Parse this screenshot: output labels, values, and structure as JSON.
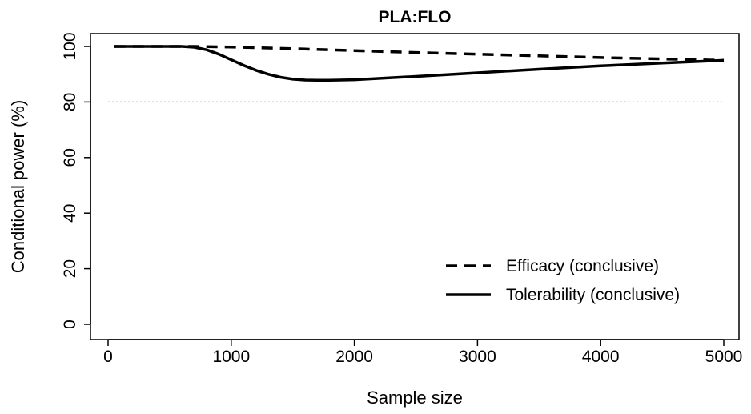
{
  "chart_data": {
    "type": "line",
    "title": "PLA:FLO",
    "xlabel": "Sample size",
    "ylabel": "Conditional power (%)",
    "xlim": [
      0,
      5000
    ],
    "ylim": [
      0,
      100
    ],
    "xticks": [
      "0",
      "1000",
      "2000",
      "3000",
      "4000",
      "5000"
    ],
    "yticks": [
      "0",
      "20",
      "40",
      "60",
      "80",
      "100"
    ],
    "reference_line": {
      "y": 80,
      "style": "dotted"
    },
    "legend_position": "bottom-right",
    "series": [
      {
        "name": "Efficacy (conclusive)",
        "style": "dashed",
        "x": [
          50,
          500,
          700,
          1000,
          1500,
          2000,
          2500,
          3000,
          3500,
          4000,
          4500,
          5000
        ],
        "y": [
          100,
          100,
          100,
          99.8,
          99.2,
          98.5,
          97.8,
          97.2,
          96.6,
          96.0,
          95.5,
          95.0
        ]
      },
      {
        "name": "Tolerability (conclusive)",
        "style": "solid",
        "x": [
          50,
          400,
          600,
          700,
          800,
          900,
          1000,
          1100,
          1200,
          1300,
          1400,
          1500,
          1600,
          1700,
          1800,
          2000,
          2500,
          3000,
          3500,
          4000,
          4500,
          5000
        ],
        "y": [
          100,
          100,
          100,
          99.7,
          98.8,
          97.2,
          95.2,
          93.2,
          91.4,
          90.0,
          88.9,
          88.2,
          87.9,
          87.8,
          87.8,
          88.0,
          89.2,
          90.5,
          91.8,
          93.0,
          94.0,
          95.0
        ]
      }
    ]
  }
}
